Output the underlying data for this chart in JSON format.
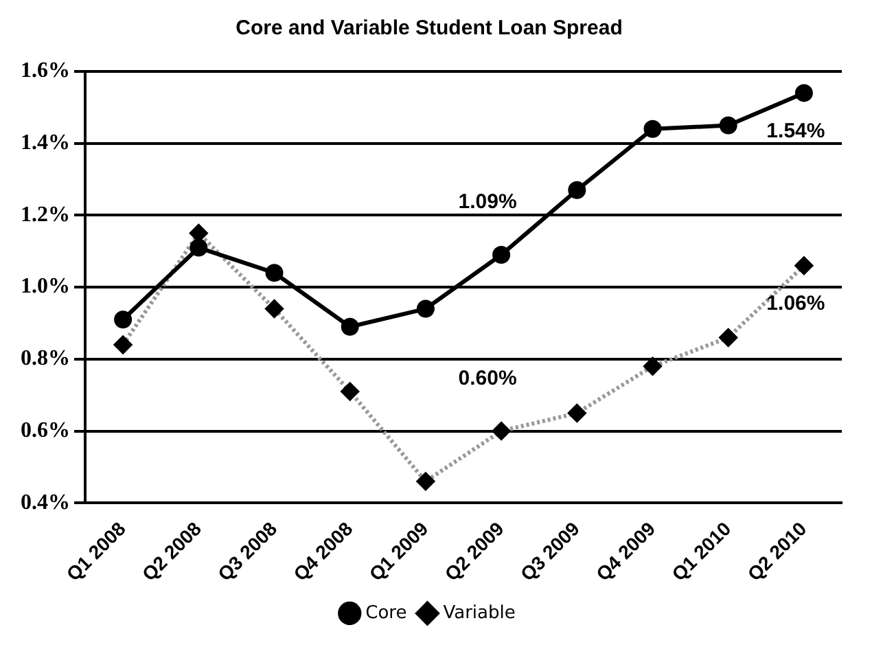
{
  "chart_data": {
    "type": "line",
    "title": "Core and Variable Student Loan Spread",
    "categories": [
      "Q1 2008",
      "Q2 2008",
      "Q3 2008",
      "Q4 2008",
      "Q1 2009",
      "Q2 2009",
      "Q3 2009",
      "Q4 2009",
      "Q1 2010",
      "Q2 2010"
    ],
    "series": [
      {
        "name": "Core",
        "color": "#000000",
        "marker": "circle",
        "line_style": "solid",
        "values": [
          0.91,
          1.11,
          1.04,
          0.89,
          0.94,
          1.09,
          1.27,
          1.44,
          1.45,
          1.54
        ]
      },
      {
        "name": "Variable",
        "color": "#999999",
        "marker": "diamond",
        "line_style": "dotted",
        "values": [
          0.84,
          1.15,
          0.94,
          0.71,
          0.46,
          0.6,
          0.65,
          0.78,
          0.86,
          1.06
        ]
      }
    ],
    "ylim": [
      0.4,
      1.6
    ],
    "yticks": [
      {
        "value": 0.4,
        "label": "0.4%"
      },
      {
        "value": 0.6,
        "label": "0.6%"
      },
      {
        "value": 0.8,
        "label": "0.8%"
      },
      {
        "value": 1.0,
        "label": "1.0%"
      },
      {
        "value": 1.2,
        "label": "1.2%"
      },
      {
        "value": 1.4,
        "label": "1.4%"
      },
      {
        "value": 1.6,
        "label": "1.6%"
      }
    ],
    "grid": "y",
    "legend": "bottom",
    "annotations": [
      {
        "text": "1.09%",
        "x": "Q2 2009",
        "y": 1.09
      },
      {
        "text": "1.54%",
        "x": "Q2 2010",
        "y": 1.54
      },
      {
        "text": "0.60%",
        "x": "Q2 2009",
        "y": 0.6
      },
      {
        "text": "1.06%",
        "x": "Q2 2010",
        "y": 1.06
      }
    ]
  }
}
